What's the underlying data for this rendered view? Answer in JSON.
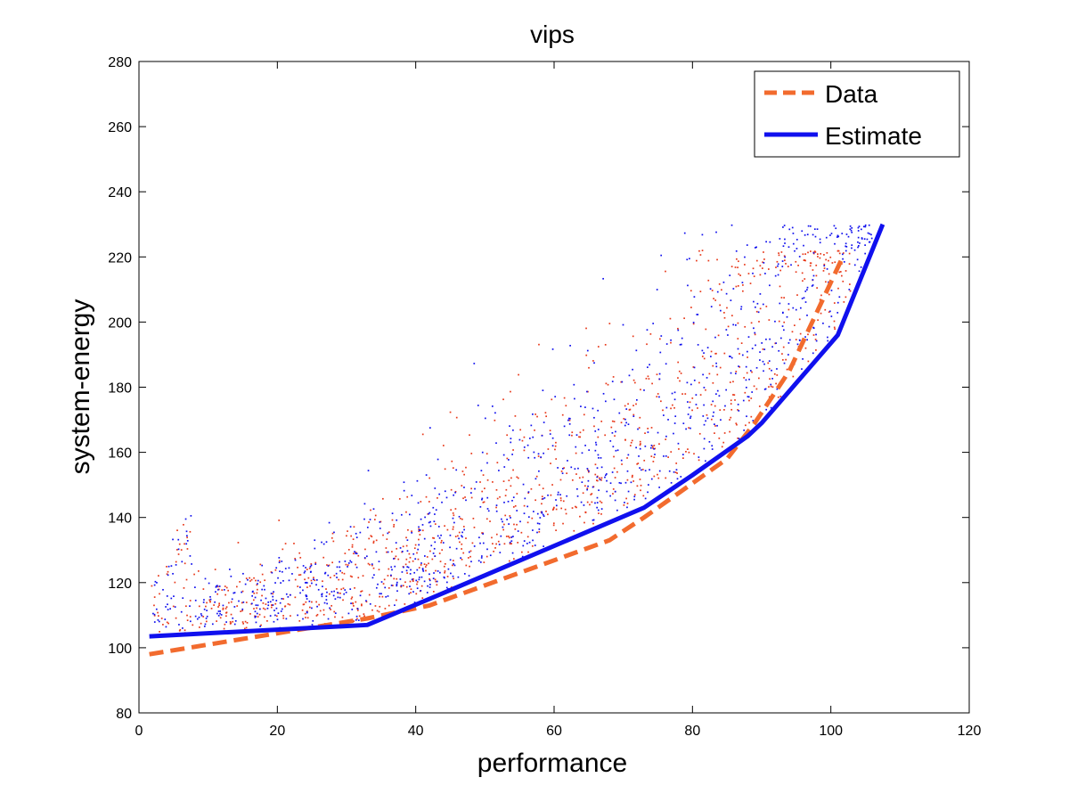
{
  "chart_data": {
    "type": "line",
    "title": "vips",
    "xlabel": "performance",
    "ylabel": "system-energy",
    "xlim": [
      0,
      120
    ],
    "ylim": [
      80,
      280
    ],
    "xticks": [
      0,
      20,
      40,
      60,
      80,
      100,
      120
    ],
    "yticks": [
      80,
      100,
      120,
      140,
      160,
      180,
      200,
      220,
      240,
      260,
      280
    ],
    "grid": false,
    "legend_position": "top-right",
    "series": [
      {
        "name": "Data",
        "style": "dashed",
        "color": "#f26b2e",
        "x": [
          1.5,
          33,
          42,
          55,
          68,
          73,
          85,
          89,
          94,
          101.5
        ],
        "y": [
          98,
          109,
          113,
          123,
          133,
          140,
          158,
          169,
          185,
          219
        ]
      },
      {
        "name": "Estimate",
        "style": "solid",
        "color": "#1010ee",
        "x": [
          1.5,
          33,
          42,
          73,
          80,
          88,
          90,
          101,
          107.5
        ],
        "y": [
          103.5,
          107,
          115,
          143,
          153,
          165,
          169,
          196,
          230
        ]
      }
    ],
    "scatter": [
      {
        "color": "#e8391a",
        "x_range": [
          1.5,
          103
        ],
        "y_range": [
          98,
          222
        ],
        "count": 1000
      },
      {
        "color": "#1010ee",
        "x_range": [
          1.5,
          106
        ],
        "y_range": [
          101,
          230
        ],
        "count": 1000
      }
    ]
  }
}
